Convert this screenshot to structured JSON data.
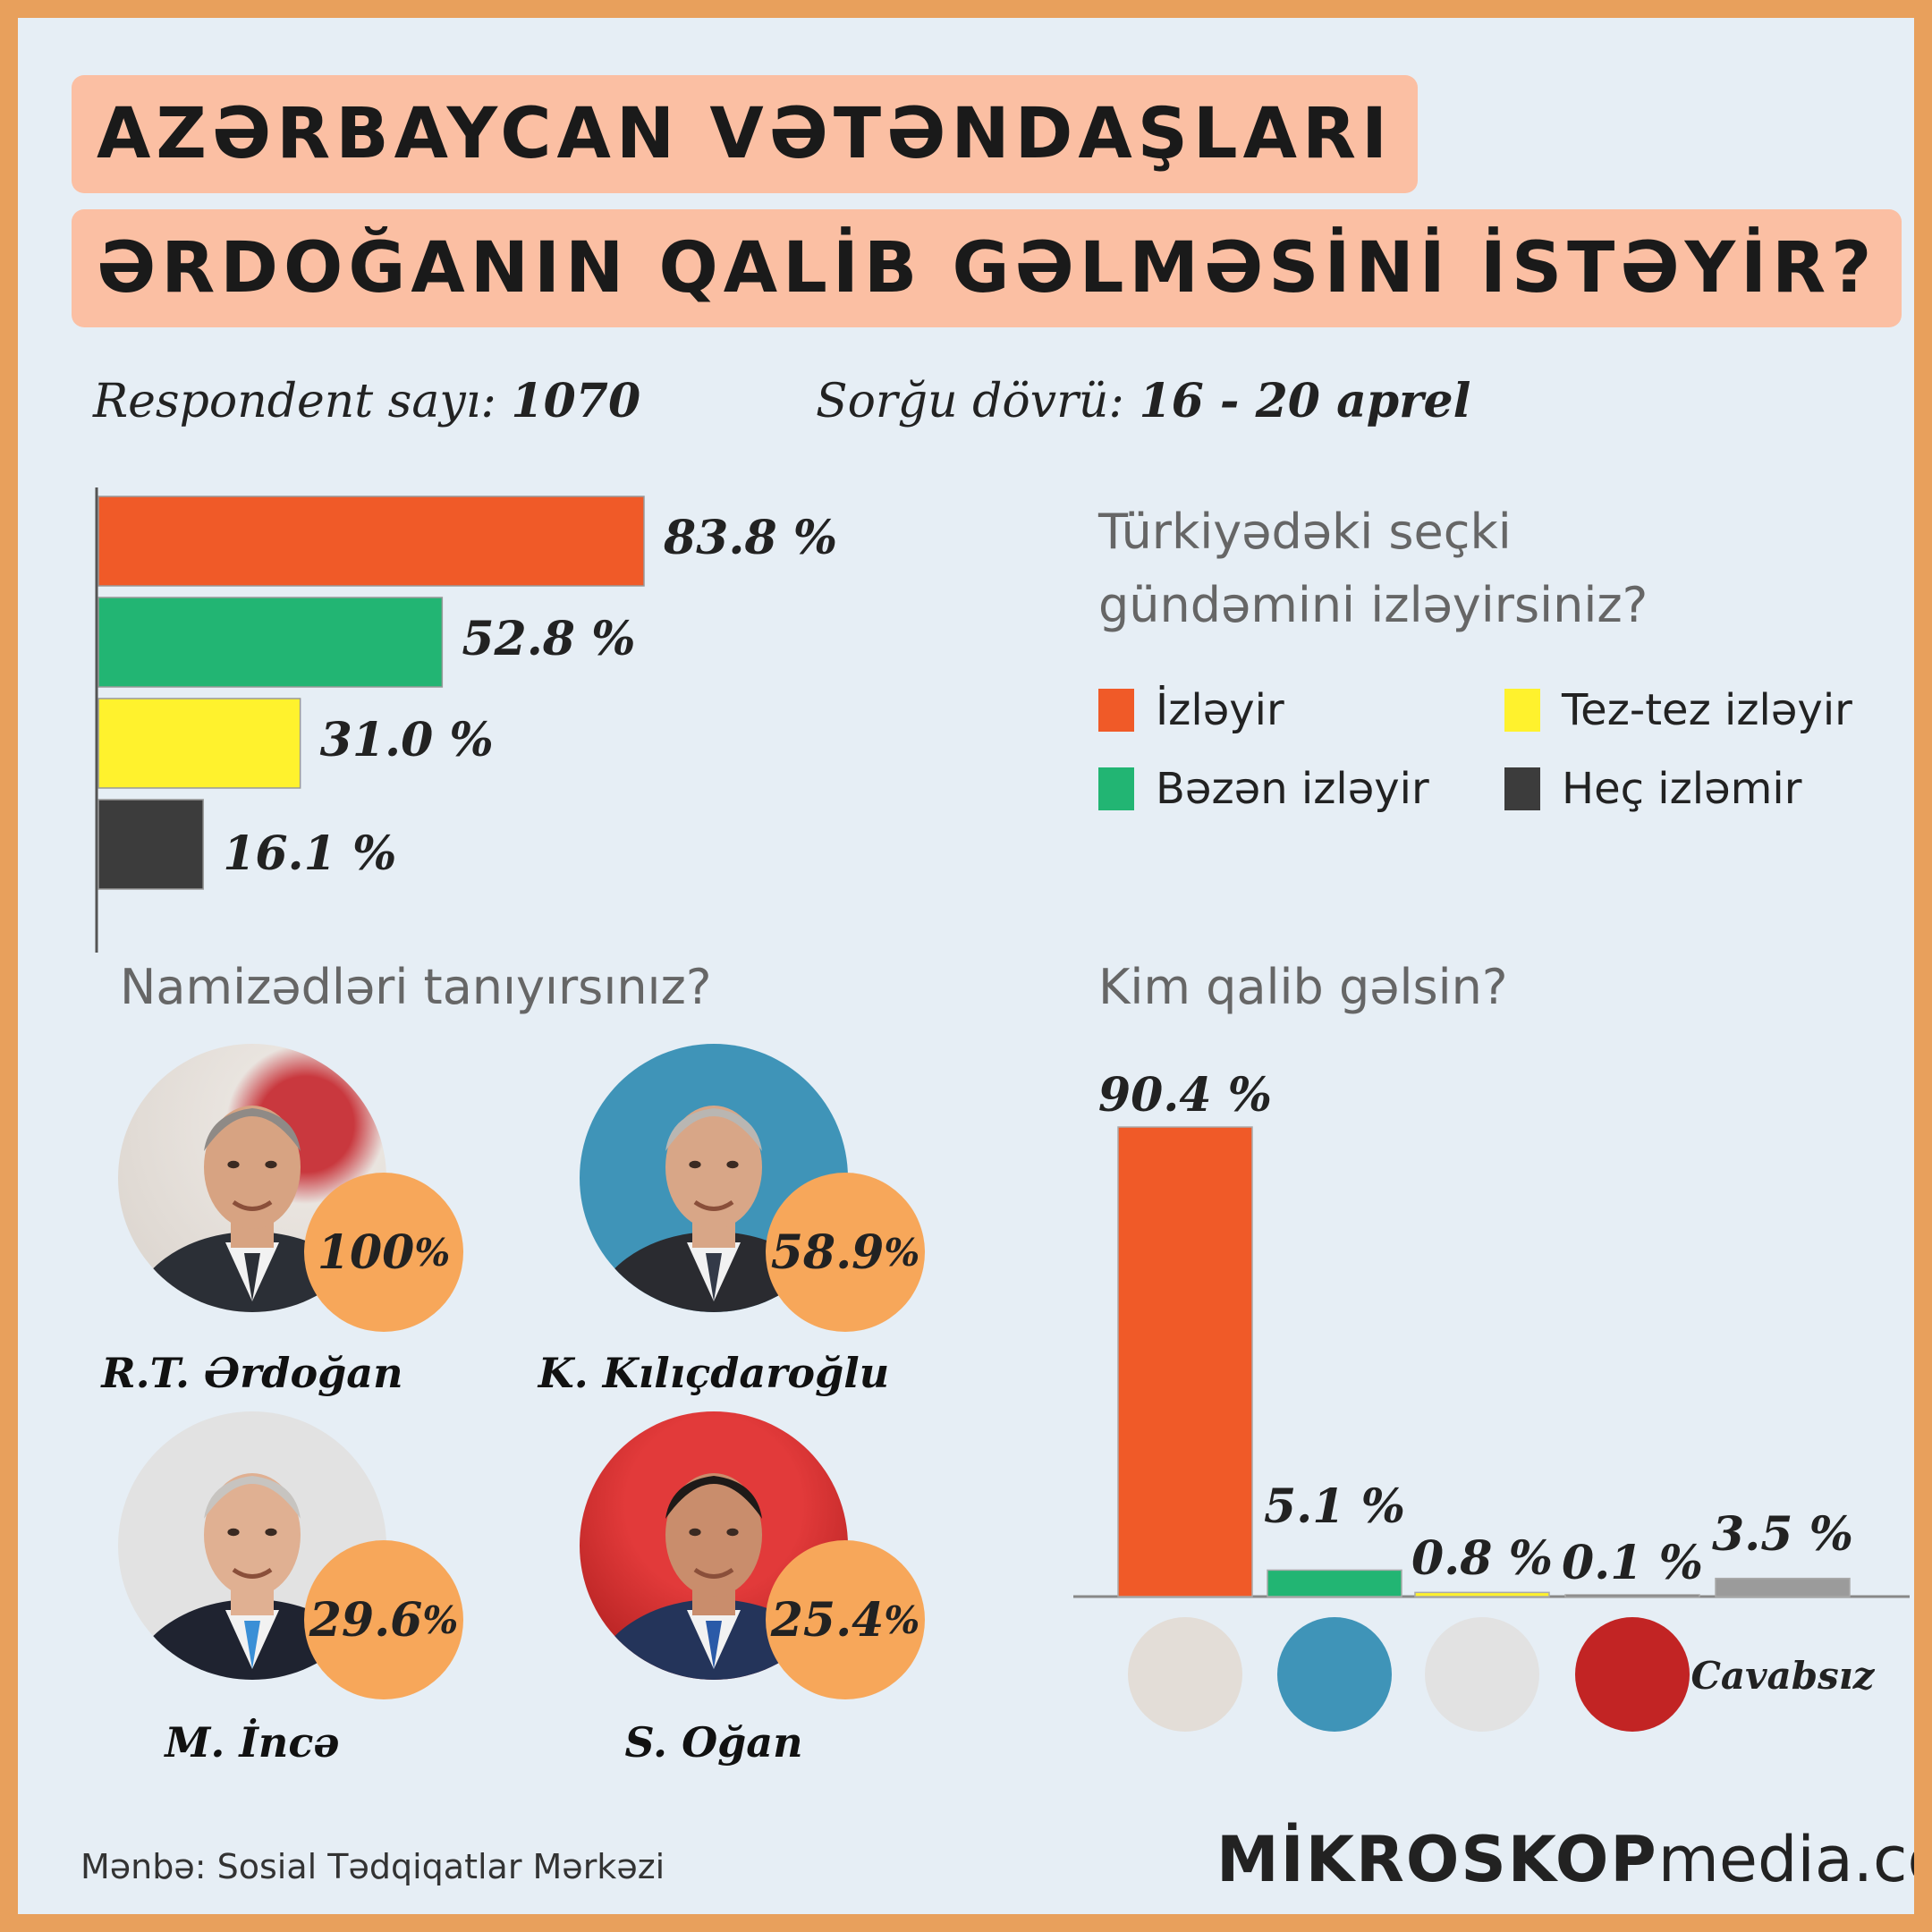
{
  "title": {
    "line1": "AZƏRBAYCAN VƏTƏNDAŞLARI",
    "line2": "ƏRDOĞANIN QALİB GƏLMƏSİNİ İSTƏYİR?"
  },
  "meta": {
    "respondent_label": "Respondent sayı:",
    "respondent_value": "1070",
    "period_label": "Sorğu dövrü:",
    "period_value": "16 - 20 aprel"
  },
  "questions": {
    "q1": "Türkiyədəki seçki gündəmini izləyirsiniz?",
    "q1_line1": "Türkiyədəki seçki",
    "q1_line2": "gündəmini izləyirsiniz?",
    "q2": "Namizədləri tanıyırsınız?",
    "q3": "Kim qalib gəlsin?"
  },
  "colors": {
    "orange": "#f05a28",
    "green": "#22b573",
    "yellow": "#fff22d",
    "dark": "#3c3c3c",
    "gray": "#9b9b9b",
    "badge": "#f7a75a"
  },
  "chart_data": [
    {
      "type": "bar",
      "orientation": "horizontal",
      "title": "Türkiyədəki seçki gündəmini izləyirsiniz?",
      "categories": [
        "İzləyir",
        "Bəzən izləyir",
        "Tez-tez izləyir",
        "Heç izləmir"
      ],
      "values": [
        83.8,
        52.8,
        31.0,
        16.1
      ],
      "value_labels": [
        "83.8 %",
        "52.8 %",
        "31.0 %",
        "16.1 %"
      ],
      "colors": [
        "#f05a28",
        "#22b573",
        "#fff22d",
        "#3c3c3c"
      ],
      "xlim": [
        0,
        100
      ],
      "legend": {
        "placement": "right",
        "items": [
          "İzləyir",
          "Tez-tez izləyir",
          "Bəzən izləyir",
          "Heç izləmir"
        ],
        "colors": [
          "#f05a28",
          "#fff22d",
          "#22b573",
          "#3c3c3c"
        ]
      }
    },
    {
      "type": "table",
      "title": "Namizədləri tanıyırsınız?",
      "candidates": [
        {
          "name": "R.T. Ərdoğan",
          "value": 100,
          "label": "100"
        },
        {
          "name": "K. Kılıçdaroğlu",
          "value": 58.9,
          "label": "58.9"
        },
        {
          "name": "M. İncə",
          "value": 29.6,
          "label": "29.6"
        },
        {
          "name": "S. Oğan",
          "value": 25.4,
          "label": "25.4"
        }
      ],
      "unit": "%"
    },
    {
      "type": "bar",
      "orientation": "vertical",
      "title": "Kim qalib gəlsin?",
      "categories": [
        "R.T. Ərdoğan",
        "K. Kılıçdaroğlu",
        "M. İncə",
        "S. Oğan",
        "Cavabsız"
      ],
      "values": [
        90.4,
        5.1,
        0.8,
        0.1,
        3.5
      ],
      "value_labels": [
        "90.4 %",
        "5.1 %",
        "0.8 %",
        "0.1 %",
        "3.5 %"
      ],
      "colors": [
        "#f05a28",
        "#22b573",
        "#fff22d",
        "#3c3c3c",
        "#9b9b9b"
      ],
      "no_answer_label": "Cavabsız",
      "ylim": [
        0,
        100
      ]
    }
  ],
  "footer": {
    "source": "Mənbə: Sosial Tədqiqatlar Mərkəzi",
    "brand_bold": "MİKROSKOP",
    "brand_light": "media.com"
  }
}
